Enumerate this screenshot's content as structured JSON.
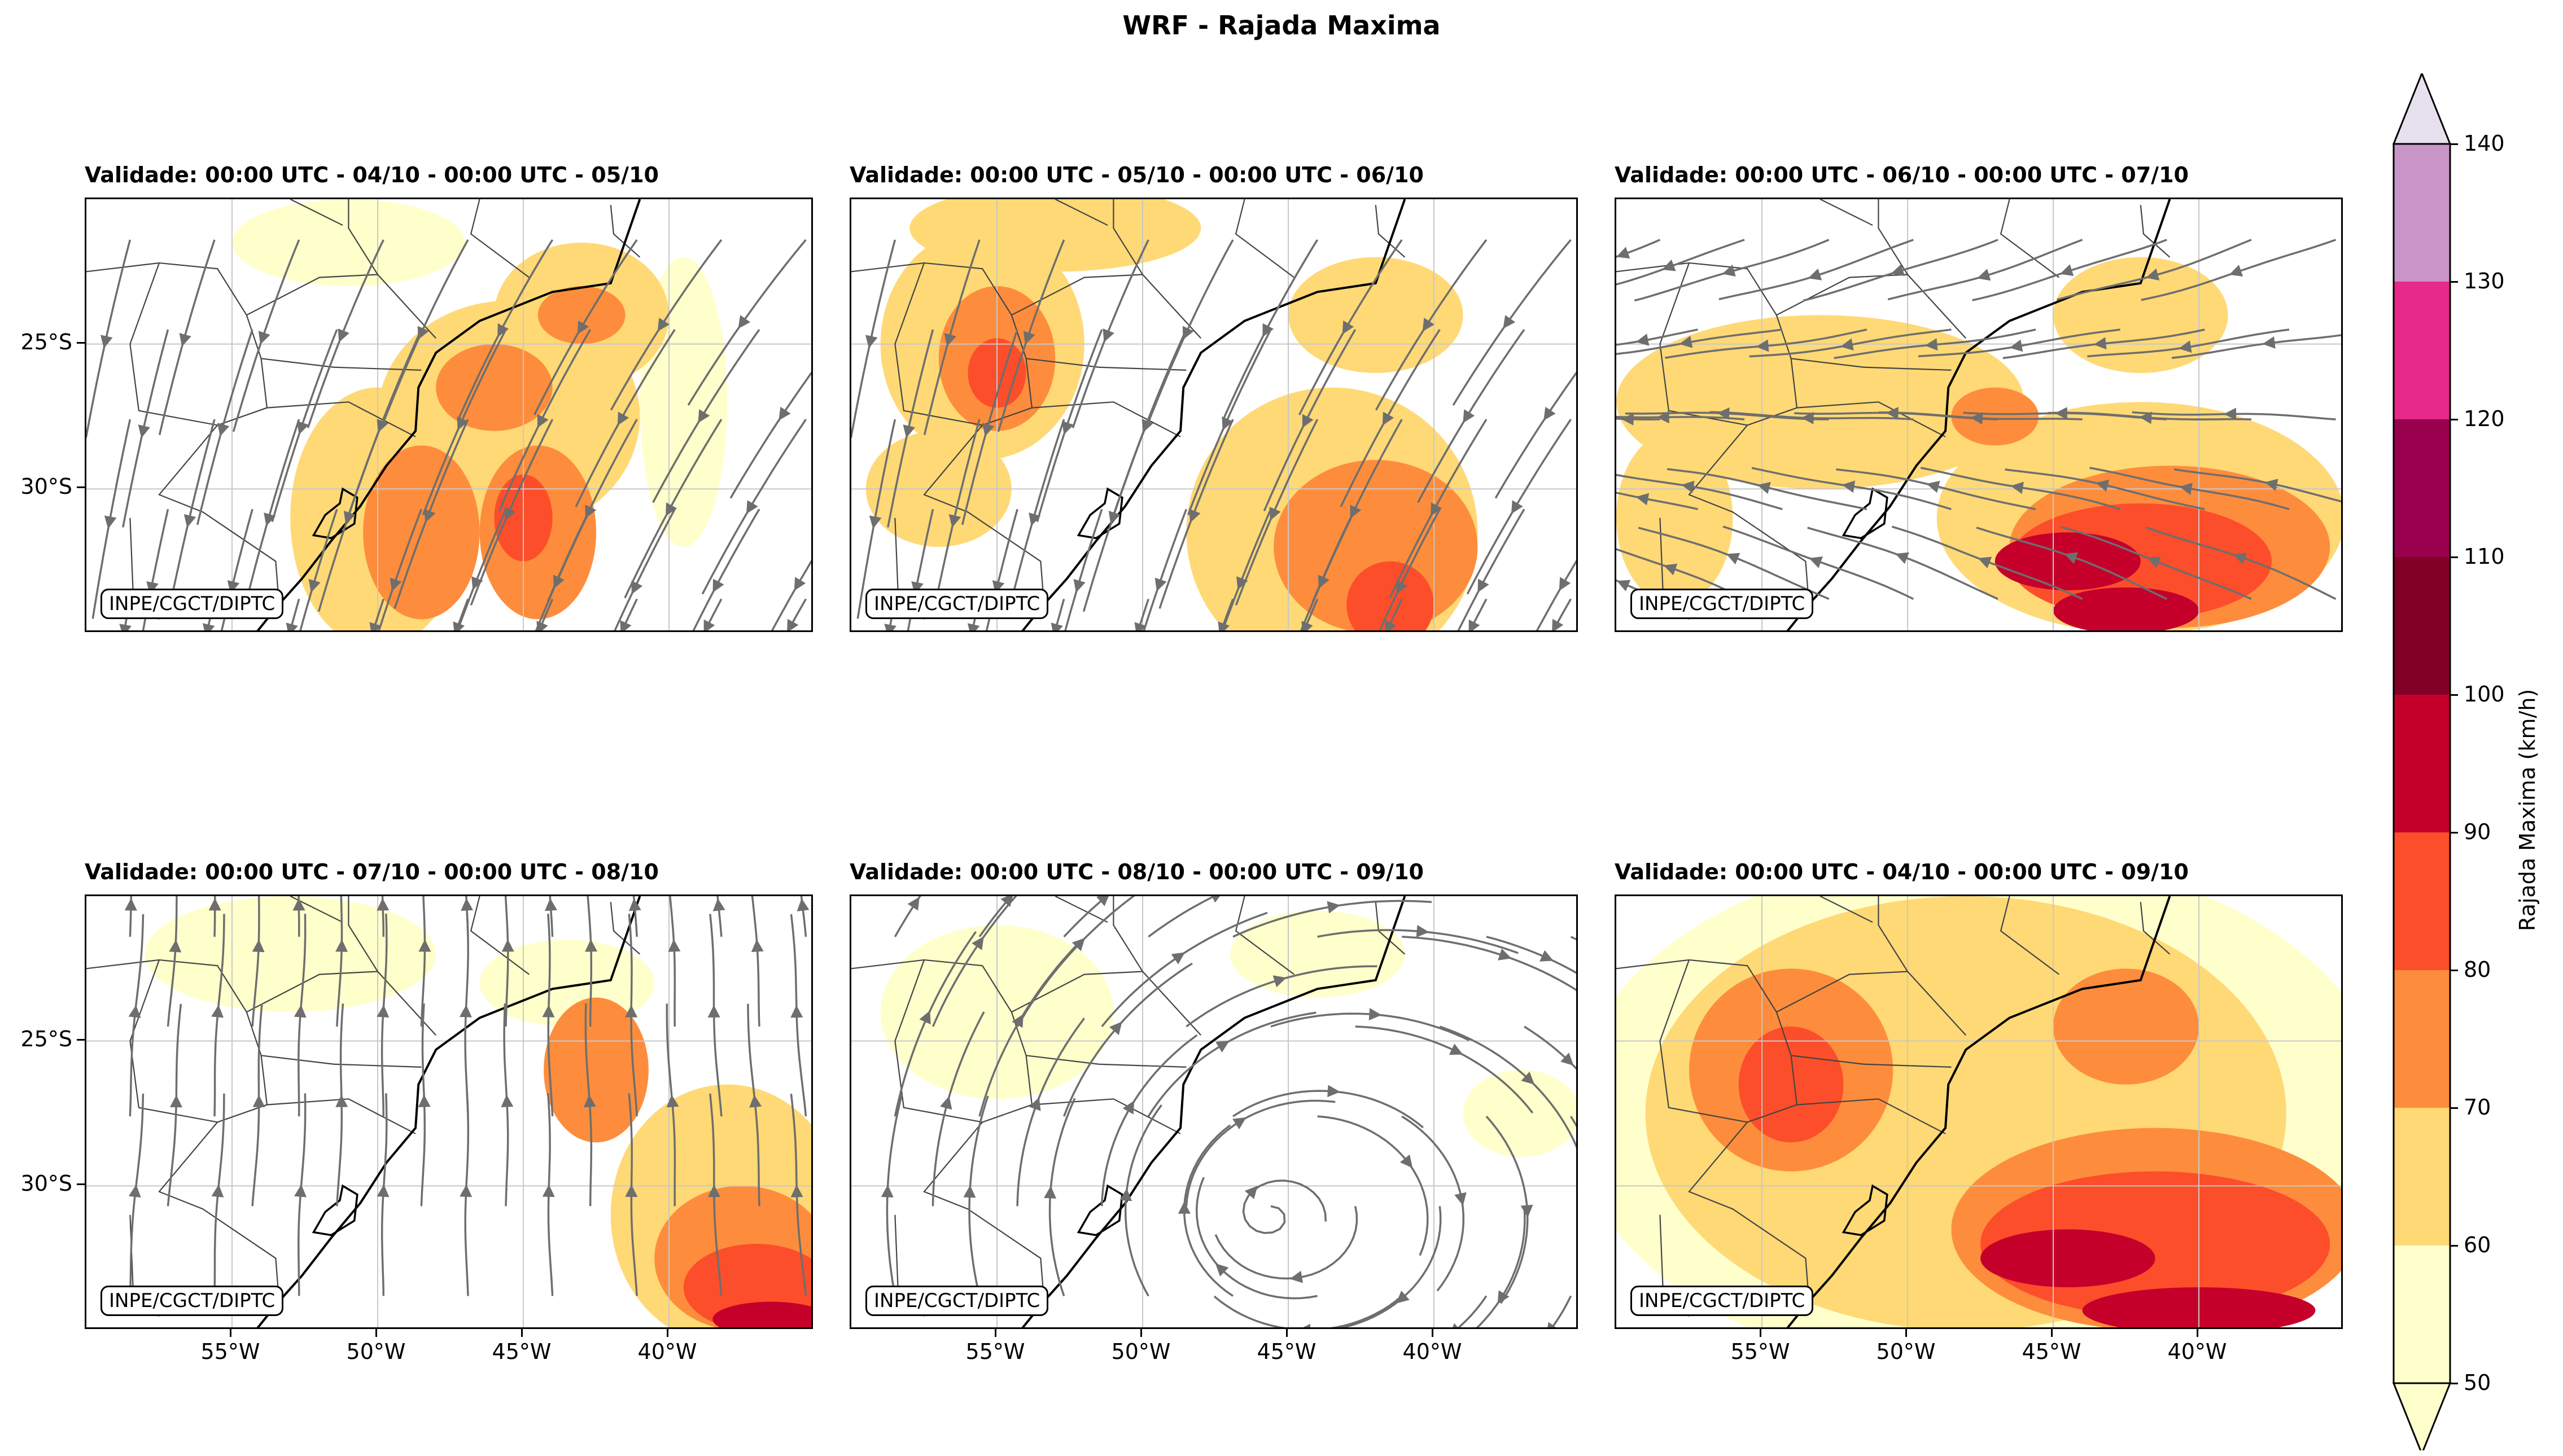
{
  "title": "WRF - Rajada Maxima",
  "credit": "INPE/CGCT/DIPTC",
  "chart_data": {
    "type": "heatmap",
    "title": "WRF - Rajada Maxima",
    "variable": "Rajada Maxima",
    "units": "km/h",
    "colorbar": {
      "label": "Rajada Maxima (km/h)",
      "levels": [
        50,
        60,
        70,
        80,
        90,
        100,
        110,
        120,
        130,
        140
      ],
      "tick_labels": [
        "50",
        "60",
        "70",
        "80",
        "90",
        "100",
        "110",
        "120",
        "130",
        "140"
      ],
      "colors": [
        "#ffffcc",
        "#fed976",
        "#fd8d3c",
        "#fc4e2a",
        "#c5002b",
        "#800026",
        "#99004d",
        "#e7298a",
        "#c994c7"
      ],
      "over_color": "#e7e1ef",
      "extend": "both"
    },
    "axes": {
      "lon_range": [
        -60,
        -35
      ],
      "lat_range": [
        -35,
        -20
      ],
      "lat_ticks": [
        {
          "value": -25,
          "label": "25°S"
        },
        {
          "value": -30,
          "label": "30°S"
        }
      ],
      "lon_ticks": [
        {
          "value": -55,
          "label": "55°W"
        },
        {
          "value": -50,
          "label": "50°W"
        },
        {
          "value": -45,
          "label": "45°W"
        },
        {
          "value": -40,
          "label": "40°W"
        }
      ]
    },
    "panels": [
      {
        "title": "Validade: 00:00 UTC - 04/10 - 00:00 UTC - 05/10",
        "flow": "nw",
        "blobs": [
          {
            "lon": -45.5,
            "lat": -27.5,
            "rx": 4.5,
            "ry": 4.0,
            "v": 62
          },
          {
            "lon": -43.0,
            "lat": -24.0,
            "rx": 3.0,
            "ry": 2.5,
            "v": 64
          },
          {
            "lon": -50.0,
            "lat": -31.0,
            "rx": 3.0,
            "ry": 4.5,
            "v": 62
          },
          {
            "lon": -46.0,
            "lat": -26.5,
            "rx": 2.0,
            "ry": 1.5,
            "v": 72
          },
          {
            "lon": -48.5,
            "lat": -31.5,
            "rx": 2.0,
            "ry": 3.0,
            "v": 72
          },
          {
            "lon": -44.5,
            "lat": -31.5,
            "rx": 2.0,
            "ry": 3.0,
            "v": 72
          },
          {
            "lon": -43.0,
            "lat": -24.0,
            "rx": 1.5,
            "ry": 1.0,
            "v": 74
          },
          {
            "lon": -45.0,
            "lat": -31.0,
            "rx": 1.0,
            "ry": 1.5,
            "v": 82
          },
          {
            "lon": -51.0,
            "lat": -21.5,
            "rx": 4.0,
            "ry": 1.5,
            "v": 56
          },
          {
            "lon": -39.5,
            "lat": -27.0,
            "rx": 1.5,
            "ry": 5.0,
            "v": 55
          }
        ]
      },
      {
        "title": "Validade: 00:00 UTC - 05/10 - 00:00 UTC - 06/10",
        "flow": "nw",
        "blobs": [
          {
            "lon": -55.5,
            "lat": -25.0,
            "rx": 3.5,
            "ry": 4.0,
            "v": 62
          },
          {
            "lon": -55.0,
            "lat": -25.5,
            "rx": 2.0,
            "ry": 2.5,
            "v": 72
          },
          {
            "lon": -55.0,
            "lat": -26.0,
            "rx": 1.0,
            "ry": 1.2,
            "v": 82
          },
          {
            "lon": -57.0,
            "lat": -30.0,
            "rx": 2.5,
            "ry": 2.0,
            "v": 62
          },
          {
            "lon": -43.5,
            "lat": -31.5,
            "rx": 5.0,
            "ry": 5.0,
            "v": 62
          },
          {
            "lon": -42.0,
            "lat": -32.0,
            "rx": 3.5,
            "ry": 3.0,
            "v": 72
          },
          {
            "lon": -41.5,
            "lat": -34.0,
            "rx": 1.5,
            "ry": 1.5,
            "v": 82
          },
          {
            "lon": -42.0,
            "lat": -24.0,
            "rx": 3.0,
            "ry": 2.0,
            "v": 65
          },
          {
            "lon": -53.0,
            "lat": -21.0,
            "rx": 5.0,
            "ry": 1.5,
            "v": 60
          }
        ]
      },
      {
        "title": "Validade: 00:00 UTC - 06/10 - 00:00 UTC - 07/10",
        "flow": "e",
        "blobs": [
          {
            "lon": -53.0,
            "lat": -27.0,
            "rx": 7.0,
            "ry": 3.0,
            "v": 63
          },
          {
            "lon": -42.0,
            "lat": -31.0,
            "rx": 7.0,
            "ry": 4.0,
            "v": 65
          },
          {
            "lon": -41.0,
            "lat": -32.0,
            "rx": 5.5,
            "ry": 2.8,
            "v": 75
          },
          {
            "lon": -42.0,
            "lat": -32.5,
            "rx": 4.5,
            "ry": 2.0,
            "v": 85
          },
          {
            "lon": -44.5,
            "lat": -32.5,
            "rx": 2.5,
            "ry": 1.0,
            "v": 95
          },
          {
            "lon": -42.5,
            "lat": -34.2,
            "rx": 2.5,
            "ry": 0.8,
            "v": 95
          },
          {
            "lon": -42.0,
            "lat": -24.0,
            "rx": 3.0,
            "ry": 2.0,
            "v": 63
          },
          {
            "lon": -47.0,
            "lat": -27.5,
            "rx": 1.5,
            "ry": 1.0,
            "v": 78
          },
          {
            "lon": -58.0,
            "lat": -31.0,
            "rx": 2.0,
            "ry": 3.0,
            "v": 62
          }
        ]
      },
      {
        "title": "Validade: 00:00 UTC - 07/10 - 00:00 UTC - 08/10",
        "flow": "s",
        "blobs": [
          {
            "lon": -38.0,
            "lat": -31.0,
            "rx": 4.0,
            "ry": 4.5,
            "v": 62
          },
          {
            "lon": -37.5,
            "lat": -32.5,
            "rx": 3.0,
            "ry": 2.5,
            "v": 72
          },
          {
            "lon": -37.0,
            "lat": -33.5,
            "rx": 2.5,
            "ry": 1.5,
            "v": 82
          },
          {
            "lon": -36.5,
            "lat": -34.6,
            "rx": 2.0,
            "ry": 0.6,
            "v": 95
          },
          {
            "lon": -42.5,
            "lat": -26.0,
            "rx": 1.8,
            "ry": 2.5,
            "v": 72
          },
          {
            "lon": -43.5,
            "lat": -23.0,
            "rx": 3.0,
            "ry": 1.5,
            "v": 58
          },
          {
            "lon": -53.0,
            "lat": -22.0,
            "rx": 5.0,
            "ry": 2.0,
            "v": 55
          }
        ]
      },
      {
        "title": "Validade: 00:00 UTC - 08/10 - 00:00 UTC - 09/10",
        "flow": "cyc",
        "blobs": [
          {
            "lon": -55.0,
            "lat": -24.0,
            "rx": 4.0,
            "ry": 3.0,
            "v": 55
          },
          {
            "lon": -44.0,
            "lat": -22.0,
            "rx": 3.0,
            "ry": 1.5,
            "v": 57
          },
          {
            "lon": -37.0,
            "lat": -27.5,
            "rx": 2.0,
            "ry": 1.5,
            "v": 55
          }
        ]
      },
      {
        "title": "Validade: 00:00 UTC - 04/10 - 00:00 UTC - 09/10",
        "flow": "none",
        "blobs": [
          {
            "lon": -47.5,
            "lat": -27.5,
            "rx": 14.0,
            "ry": 9.0,
            "v": 55
          },
          {
            "lon": -48.0,
            "lat": -27.5,
            "rx": 11.0,
            "ry": 7.5,
            "v": 63
          },
          {
            "lon": -54.0,
            "lat": -26.0,
            "rx": 3.5,
            "ry": 3.5,
            "v": 72
          },
          {
            "lon": -54.0,
            "lat": -26.5,
            "rx": 1.8,
            "ry": 2.0,
            "v": 82
          },
          {
            "lon": -41.5,
            "lat": -31.5,
            "rx": 7.0,
            "ry": 3.5,
            "v": 72
          },
          {
            "lon": -41.5,
            "lat": -32.0,
            "rx": 6.0,
            "ry": 2.5,
            "v": 82
          },
          {
            "lon": -44.5,
            "lat": -32.5,
            "rx": 3.0,
            "ry": 1.0,
            "v": 95
          },
          {
            "lon": -40.0,
            "lat": -34.3,
            "rx": 4.0,
            "ry": 0.8,
            "v": 95
          },
          {
            "lon": -42.5,
            "lat": -24.5,
            "rx": 2.5,
            "ry": 2.0,
            "v": 72
          },
          {
            "lon": -38.0,
            "lat": -22.5,
            "rx": 2.5,
            "ry": 2.5,
            "v": 48
          }
        ]
      }
    ]
  }
}
